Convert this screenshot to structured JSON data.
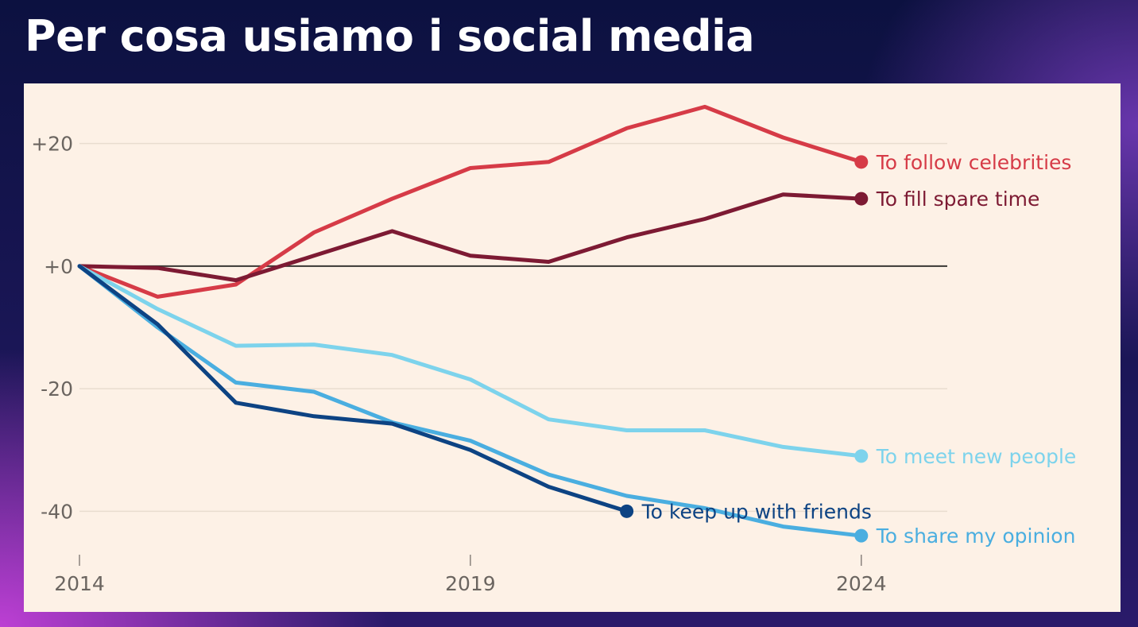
{
  "title": "Per cosa usiamo i social media",
  "chart_data": {
    "type": "line",
    "title": "Per cosa usiamo i social media",
    "xlabel": "",
    "ylabel": "",
    "x": [
      2014,
      2015,
      2016,
      2017,
      2018,
      2019,
      2020,
      2021,
      2022,
      2023,
      2024
    ],
    "xticks": [
      2014,
      2019,
      2024
    ],
    "xtick_labels": [
      "2014",
      "2019",
      "2024"
    ],
    "yticks": [
      20,
      0,
      -20,
      -40
    ],
    "ytick_labels": [
      "+20",
      "+0",
      "-20",
      "-40"
    ],
    "xlim": [
      2014,
      2025.1
    ],
    "ylim": [
      -48,
      28
    ],
    "grid": true,
    "legend": "inline labels at line ends",
    "series": [
      {
        "name": "To follow celebrities",
        "label": "To follow celebrities",
        "color": "#d63b47",
        "values": [
          0,
          -5,
          -3,
          5.5,
          11,
          16,
          17,
          22.5,
          26,
          21,
          17
        ]
      },
      {
        "name": "To fill spare time",
        "label": "To fill spare time",
        "color": "#7d1a33",
        "values": [
          0,
          -0.3,
          -2.3,
          1.7,
          5.7,
          1.7,
          0.7,
          4.7,
          7.7,
          11.7,
          11
        ]
      },
      {
        "name": "To meet new people",
        "label": "To meet new people",
        "color": "#7dd3ec",
        "values": [
          0,
          -7,
          -13,
          -12.8,
          -14.5,
          -18.5,
          -25,
          -26.8,
          -26.8,
          -29.5,
          -31
        ]
      },
      {
        "name": "To share my opinion",
        "label": "To share my opinion",
        "color": "#4aaee0",
        "values": [
          0,
          -10,
          -19,
          -20.5,
          -25.5,
          -28.5,
          -34,
          -37.5,
          -39.5,
          -42.5,
          -44
        ]
      },
      {
        "name": "To keep up with friends",
        "label": "To keep up with friends",
        "color": "#0d4383",
        "values": [
          0,
          -9.5,
          -22.3,
          -24.5,
          -25.7,
          -30,
          -36,
          -40,
          null,
          null,
          null
        ]
      }
    ]
  }
}
